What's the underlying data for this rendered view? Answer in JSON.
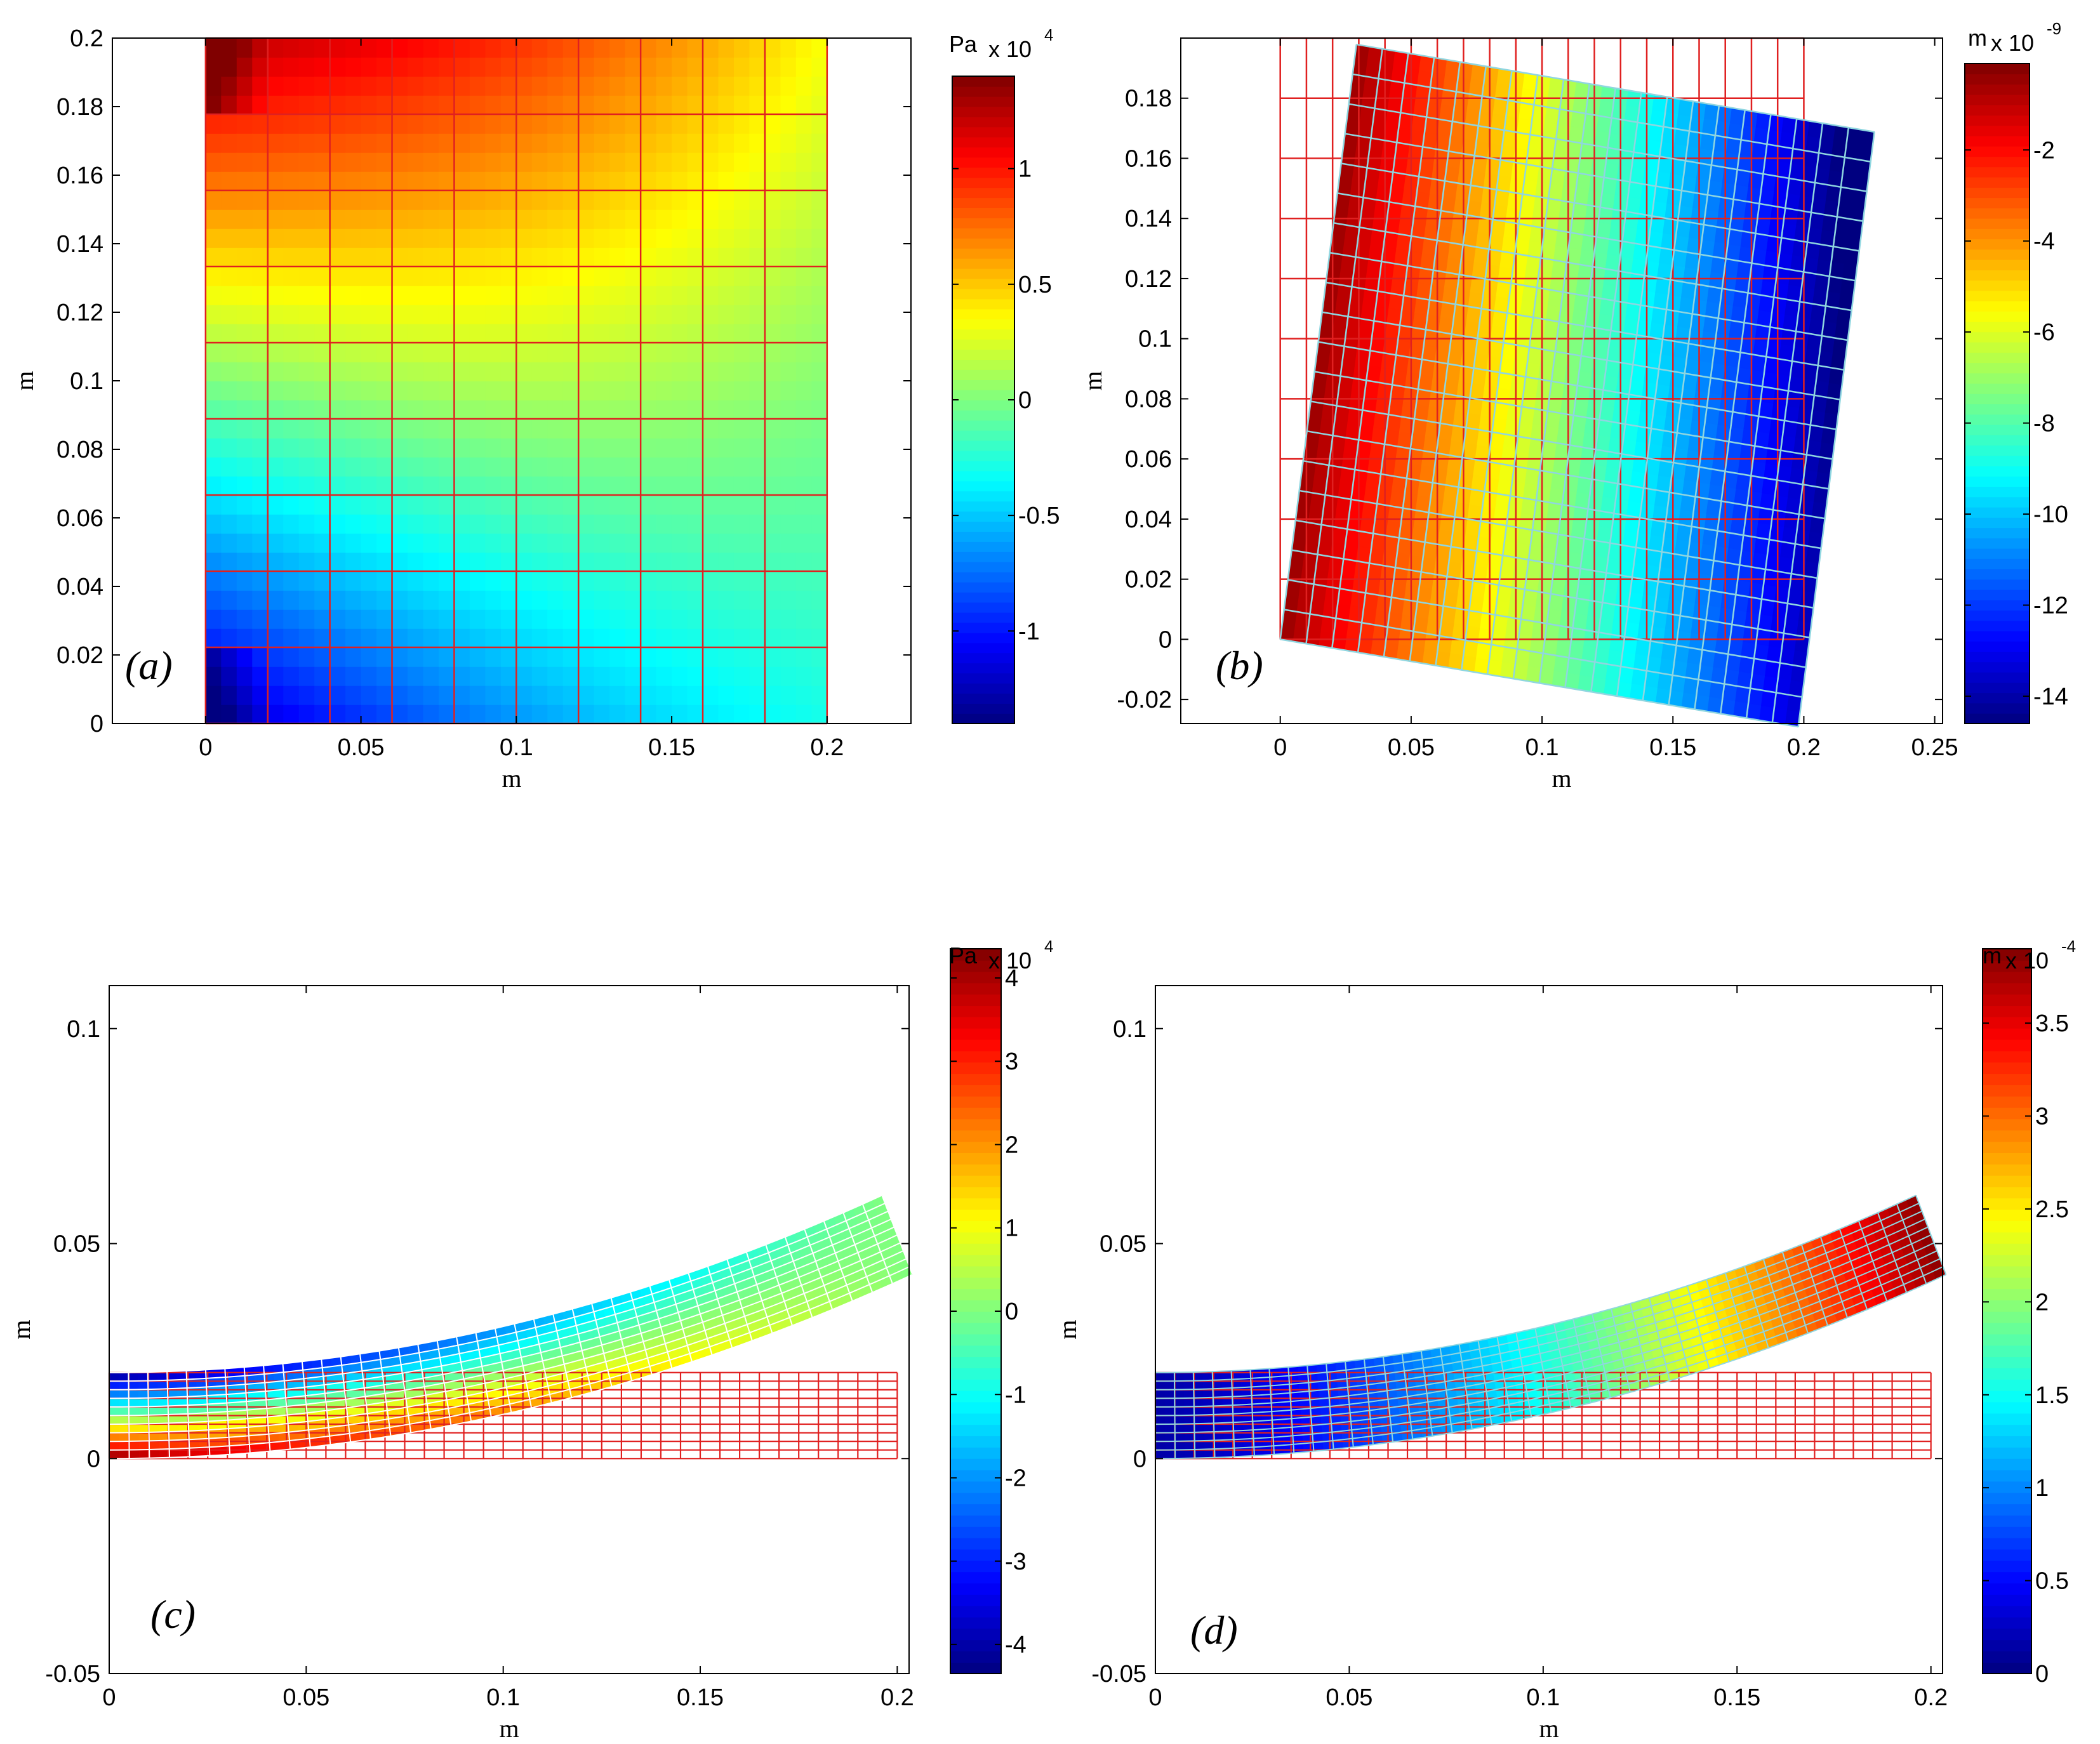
{
  "chart_data": [
    {
      "id": "a",
      "type": "heatmap",
      "panel_label": "a",
      "description_mesh": "10x9 red grid over colored square domain",
      "xlabel": "m",
      "ylabel": "m",
      "xlim": [
        -0.03,
        0.227
      ],
      "ylim": [
        0,
        0.2
      ],
      "xticks": [
        {
          "v": 0,
          "label": "0"
        },
        {
          "v": 0.05,
          "label": "0.05"
        },
        {
          "v": 0.1,
          "label": "0.1"
        },
        {
          "v": 0.15,
          "label": "0.15"
        },
        {
          "v": 0.2,
          "label": "0.2"
        }
      ],
      "yticks": [
        {
          "v": 0,
          "label": "0"
        },
        {
          "v": 0.02,
          "label": "0.02"
        },
        {
          "v": 0.04,
          "label": "0.04"
        },
        {
          "v": 0.06,
          "label": "0.06"
        },
        {
          "v": 0.08,
          "label": "0.08"
        },
        {
          "v": 0.1,
          "label": "0.1"
        },
        {
          "v": 0.12,
          "label": "0.12"
        },
        {
          "v": 0.14,
          "label": "0.14"
        },
        {
          "v": 0.16,
          "label": "0.16"
        },
        {
          "v": 0.18,
          "label": "0.18"
        },
        {
          "v": 0.2,
          "label": "0.2"
        }
      ],
      "colorbar": {
        "unit": "Pa",
        "multiplier": "x 10",
        "exponent": "4",
        "range": [
          -1.4,
          1.4
        ],
        "ticks": [
          {
            "v": -1,
            "label": "-1"
          },
          {
            "v": -0.5,
            "label": "-0.5"
          },
          {
            "v": 0,
            "label": "0"
          },
          {
            "v": 0.5,
            "label": "0.5"
          },
          {
            "v": 1,
            "label": "1"
          }
        ]
      }
    },
    {
      "id": "b",
      "type": "heatmap",
      "panel_label": "b",
      "xlabel": "m",
      "ylabel": "m",
      "xlim": [
        -0.038,
        0.253
      ],
      "ylim": [
        -0.028,
        0.2
      ],
      "xticks": [
        {
          "v": 0,
          "label": "0"
        },
        {
          "v": 0.05,
          "label": "0.05"
        },
        {
          "v": 0.1,
          "label": "0.1"
        },
        {
          "v": 0.15,
          "label": "0.15"
        },
        {
          "v": 0.2,
          "label": "0.2"
        },
        {
          "v": 0.25,
          "label": "0.25"
        }
      ],
      "yticks": [
        {
          "v": -0.02,
          "label": "-0.02"
        },
        {
          "v": 0,
          "label": "0"
        },
        {
          "v": 0.02,
          "label": "0.02"
        },
        {
          "v": 0.04,
          "label": "0.04"
        },
        {
          "v": 0.06,
          "label": "0.06"
        },
        {
          "v": 0.08,
          "label": "0.08"
        },
        {
          "v": 0.1,
          "label": "0.1"
        },
        {
          "v": 0.12,
          "label": "0.12"
        },
        {
          "v": 0.14,
          "label": "0.14"
        },
        {
          "v": 0.16,
          "label": "0.16"
        },
        {
          "v": 0.18,
          "label": "0.18"
        }
      ],
      "colorbar": {
        "unit": "m",
        "multiplier": "x 10",
        "exponent": "-9",
        "range": [
          -14.6,
          -0.1
        ],
        "ticks": [
          {
            "v": -14,
            "label": "-14"
          },
          {
            "v": -12,
            "label": "-12"
          },
          {
            "v": -10,
            "label": "-10"
          },
          {
            "v": -8,
            "label": "-8"
          },
          {
            "v": -6,
            "label": "-6"
          },
          {
            "v": -4,
            "label": "-4"
          },
          {
            "v": -2,
            "label": "-2"
          }
        ]
      }
    },
    {
      "id": "c",
      "type": "heatmap",
      "panel_label": "c",
      "xlabel": "m",
      "ylabel": "m",
      "xlim": [
        0,
        0.203
      ],
      "ylim": [
        -0.05,
        0.11
      ],
      "xticks": [
        {
          "v": 0,
          "label": "0"
        },
        {
          "v": 0.05,
          "label": "0.05"
        },
        {
          "v": 0.1,
          "label": "0.1"
        },
        {
          "v": 0.15,
          "label": "0.15"
        },
        {
          "v": 0.2,
          "label": "0.2"
        }
      ],
      "yticks": [
        {
          "v": -0.05,
          "label": "-0.05"
        },
        {
          "v": 0,
          "label": "0"
        },
        {
          "v": 0.05,
          "label": "0.05"
        },
        {
          "v": 0.1,
          "label": "0.1"
        }
      ],
      "colorbar": {
        "unit": "Pa",
        "multiplier": "x 10",
        "exponent": "4",
        "range": [
          -4.35,
          4.35
        ],
        "ticks": [
          {
            "v": -4,
            "label": "-4"
          },
          {
            "v": -3,
            "label": "-3"
          },
          {
            "v": -2,
            "label": "-2"
          },
          {
            "v": -1,
            "label": "-1"
          },
          {
            "v": 0,
            "label": "0"
          },
          {
            "v": 1,
            "label": "1"
          },
          {
            "v": 2,
            "label": "2"
          },
          {
            "v": 3,
            "label": "3"
          },
          {
            "v": 4,
            "label": "4"
          }
        ]
      }
    },
    {
      "id": "d",
      "type": "heatmap",
      "panel_label": "d",
      "xlabel": "m",
      "ylabel": "m",
      "xlim": [
        0,
        0.203
      ],
      "ylim": [
        -0.05,
        0.11
      ],
      "xticks": [
        {
          "v": 0,
          "label": "0"
        },
        {
          "v": 0.05,
          "label": "0.05"
        },
        {
          "v": 0.1,
          "label": "0.1"
        },
        {
          "v": 0.15,
          "label": "0.15"
        },
        {
          "v": 0.2,
          "label": "0.2"
        }
      ],
      "yticks": [
        {
          "v": -0.05,
          "label": "-0.05"
        },
        {
          "v": 0,
          "label": "0"
        },
        {
          "v": 0.05,
          "label": "0.05"
        },
        {
          "v": 0.1,
          "label": "0.1"
        }
      ],
      "colorbar": {
        "unit": "m",
        "multiplier": "x 10",
        "exponent": "-4",
        "range": [
          0,
          3.9
        ],
        "ticks": [
          {
            "v": 0,
            "label": "0"
          },
          {
            "v": 0.5,
            "label": "0.5"
          },
          {
            "v": 1,
            "label": "1"
          },
          {
            "v": 1.5,
            "label": "1.5"
          },
          {
            "v": 2,
            "label": "2"
          },
          {
            "v": 2.5,
            "label": "2.5"
          },
          {
            "v": 3,
            "label": "3"
          },
          {
            "v": 3.5,
            "label": "3.5"
          }
        ]
      }
    }
  ],
  "colors": {
    "original_mesh": "#e02020",
    "deformed_mesh_c": "#ffffff",
    "deformed_mesh_b": "#8fd6e0"
  }
}
